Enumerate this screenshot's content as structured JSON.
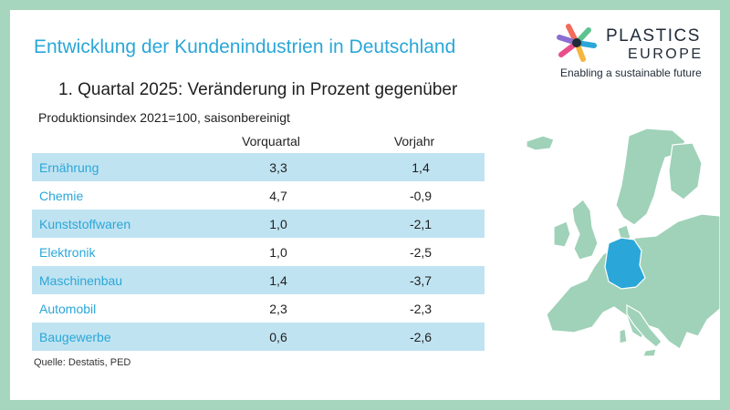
{
  "title": "Entwicklung der Kundenindustrien in Deutschland",
  "subtitle": "1. Quartal 2025: Veränderung in Prozent gegenüber",
  "note": "Produktionsindex 2021=100, saisonbereinigt",
  "columns": {
    "vorquartal": "Vorquartal",
    "vorjahr": "Vorjahr"
  },
  "rows": [
    {
      "name": "Ernährung",
      "vorquartal": "3,3",
      "vorjahr": "1,4"
    },
    {
      "name": "Chemie",
      "vorquartal": "4,7",
      "vorjahr": "-0,9"
    },
    {
      "name": "Kunststoffwaren",
      "vorquartal": "1,0",
      "vorjahr": "-2,1"
    },
    {
      "name": "Elektronik",
      "vorquartal": "1,0",
      "vorjahr": "-2,5"
    },
    {
      "name": "Maschinenbau",
      "vorquartal": "1,4",
      "vorjahr": "-3,7"
    },
    {
      "name": "Automobil",
      "vorquartal": "2,3",
      "vorjahr": "-2,3"
    },
    {
      "name": "Baugewerbe",
      "vorquartal": "0,6",
      "vorjahr": "-2,6"
    }
  ],
  "source": "Quelle: Destatis, PED",
  "logo": {
    "line1": "PLASTICS",
    "line2": "EUROPE",
    "tagline": "Enabling a sustainable future"
  },
  "colors": {
    "accent": "#2aa7d8",
    "row_highlight": "#c0e3f1",
    "frame": "#a6d6bd",
    "map_land": "#9fd2b8",
    "germany": "#2aa7d8"
  }
}
